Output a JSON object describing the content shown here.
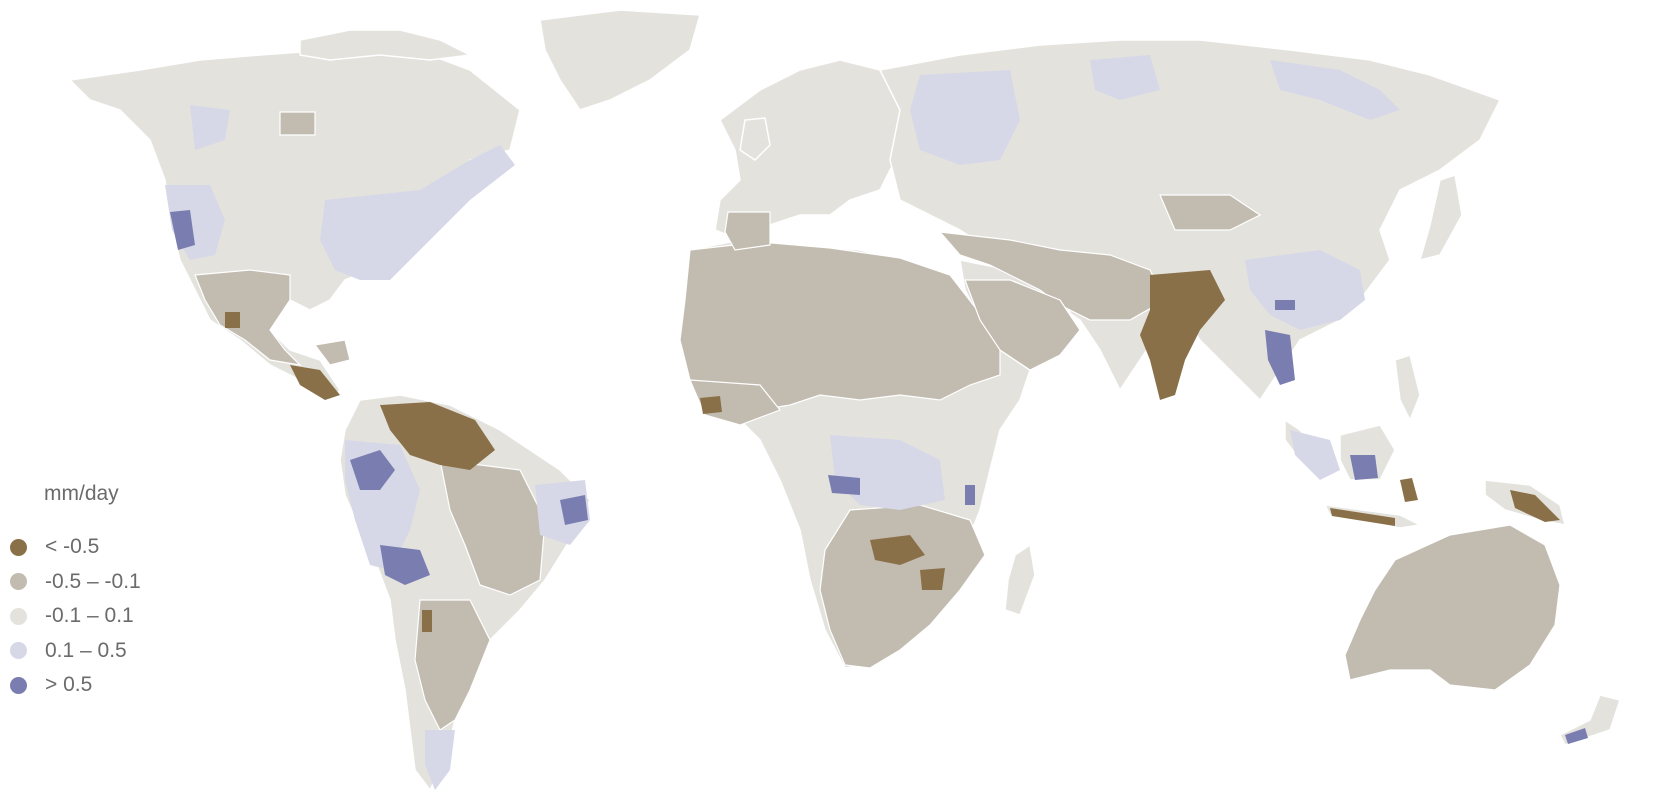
{
  "legend": {
    "title": "mm/day",
    "items": [
      {
        "label": "< -0.5",
        "color": "#8a7048"
      },
      {
        "label": "-0.5 – -0.1",
        "color": "#c2bbb0"
      },
      {
        "label": "-0.1 – 0.1",
        "color": "#e3e2dd"
      },
      {
        "label": "0.1 – 0.5",
        "color": "#d6d8e8"
      },
      {
        "label": "> 0.5",
        "color": "#7a7db0"
      }
    ]
  },
  "colors": {
    "background": "#ffffff",
    "border": "#ffffff"
  }
}
